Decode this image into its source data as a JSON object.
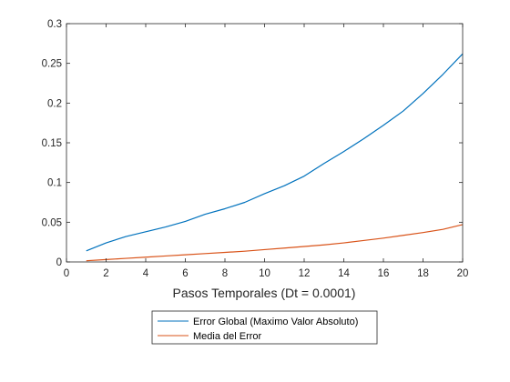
{
  "chart_data": {
    "type": "line",
    "title": "",
    "xlabel": "Pasos Temporales (Dt = 0.0001)",
    "ylabel": "",
    "xlim": [
      0,
      20
    ],
    "ylim": [
      0,
      0.3
    ],
    "xticks": [
      0,
      2,
      4,
      6,
      8,
      10,
      12,
      14,
      16,
      18,
      20
    ],
    "yticks": [
      0,
      0.05,
      0.1,
      0.15,
      0.2,
      0.25,
      0.3
    ],
    "xtick_labels": [
      "0",
      "2",
      "4",
      "6",
      "8",
      "10",
      "12",
      "14",
      "16",
      "18",
      "20"
    ],
    "ytick_labels": [
      "0",
      "0.05",
      "0.1",
      "0.15",
      "0.2",
      "0.25",
      "0.3"
    ],
    "grid": false,
    "legend_position": "bottom-center, outside plot",
    "x": [
      1,
      2,
      3,
      4,
      5,
      6,
      7,
      8,
      9,
      10,
      11,
      12,
      13,
      14,
      15,
      16,
      17,
      18,
      19,
      20
    ],
    "series": [
      {
        "name": "Error Global (Maximo Valor Absoluto)",
        "color": "#0072BD",
        "values": [
          0.014,
          0.024,
          0.032,
          0.038,
          0.044,
          0.051,
          0.06,
          0.067,
          0.075,
          0.086,
          0.096,
          0.108,
          0.124,
          0.139,
          0.155,
          0.172,
          0.19,
          0.212,
          0.236,
          0.262
        ]
      },
      {
        "name": "Media del Error",
        "color": "#D95319",
        "values": [
          0.0015,
          0.003,
          0.0045,
          0.006,
          0.0075,
          0.009,
          0.0105,
          0.012,
          0.0135,
          0.0155,
          0.0175,
          0.0195,
          0.0215,
          0.024,
          0.027,
          0.03,
          0.0335,
          0.037,
          0.041,
          0.047
        ]
      }
    ]
  }
}
